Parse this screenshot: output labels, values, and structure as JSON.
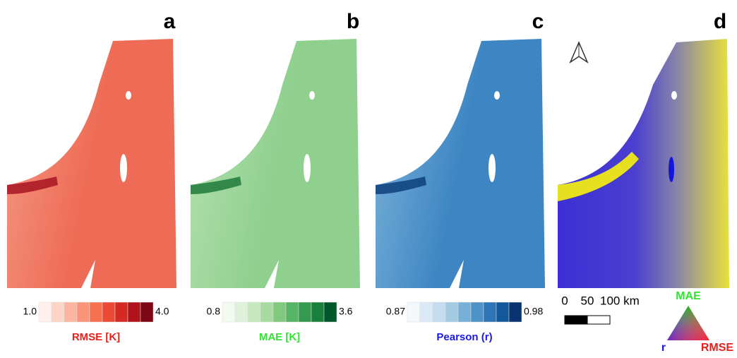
{
  "panels": [
    {
      "letter": "a",
      "map_color": "#ee6b55",
      "map_light": "#f49a85",
      "coast_color": "#a81422",
      "colorbar": {
        "min": "1.0",
        "max": "4.0",
        "label": "RMSE [K]",
        "label_color": "#e8211c",
        "colors": [
          "#fff0ec",
          "#fdd5c7",
          "#fcb5a0",
          "#fb9579",
          "#f7704f",
          "#ec4a34",
          "#d42a24",
          "#b0131c",
          "#7d0713"
        ]
      }
    },
    {
      "letter": "b",
      "map_color": "#8fd08f",
      "map_light": "#b7e1b2",
      "coast_color": "#1f7a3a",
      "colorbar": {
        "min": "0.8",
        "max": "3.6",
        "label": "MAE [K]",
        "label_color": "#2ee52e",
        "colors": [
          "#f3fbf1",
          "#def2d9",
          "#c5e8bf",
          "#a7dba0",
          "#80c97d",
          "#56b466",
          "#349a4f",
          "#19803b",
          "#00582a"
        ]
      }
    },
    {
      "letter": "c",
      "map_color": "#3d86c3",
      "map_light": "#7fb4da",
      "coast_color": "#0e3f7a",
      "colorbar": {
        "min": "0.87",
        "max": "0.98",
        "label": "Pearson (r)",
        "label_color": "#1a1ae6",
        "colors": [
          "#f3f8fd",
          "#dce9f6",
          "#c5dbef",
          "#a2cae3",
          "#76b0d7",
          "#4d93c7",
          "#2d75b6",
          "#14589c",
          "#0a3470"
        ]
      }
    }
  ],
  "panel_d": {
    "letter": "d",
    "scale_bar": {
      "start": "0",
      "middle": "50",
      "end": "100 km"
    },
    "triangle": {
      "top": "MAE",
      "left": "r",
      "right": "RMSE"
    }
  }
}
